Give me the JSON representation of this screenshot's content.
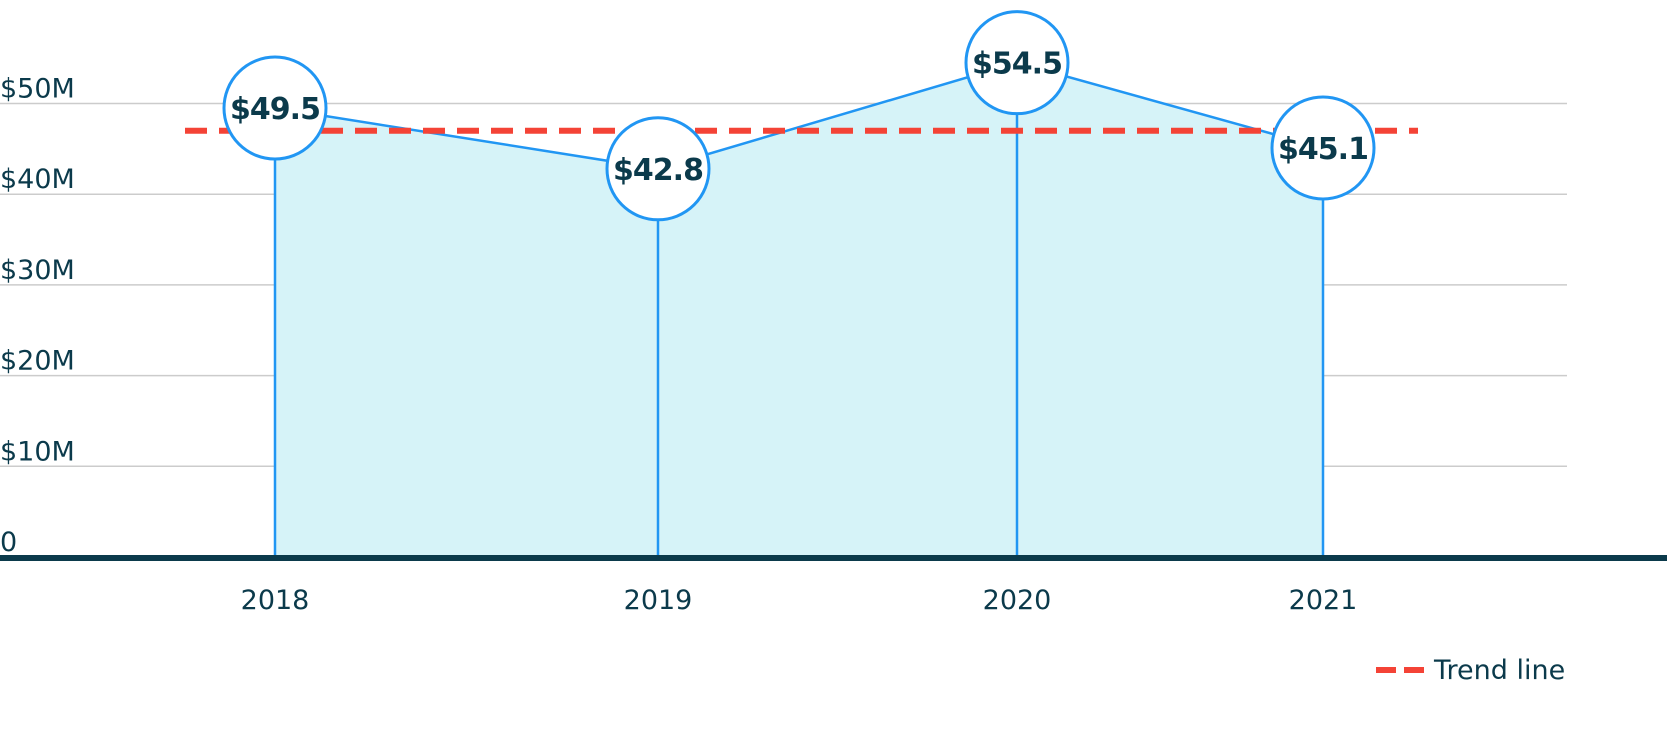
{
  "chart_data": {
    "type": "area",
    "categories": [
      "2018",
      "2019",
      "2020",
      "2021"
    ],
    "values": [
      49.5,
      42.8,
      54.5,
      45.1
    ],
    "data_labels": [
      "$49.5",
      "$42.8",
      "$54.5",
      "$45.1"
    ],
    "trend_value": 47,
    "ylim": [
      0,
      50
    ],
    "y_tick_values": [
      0,
      10,
      20,
      30,
      40,
      50
    ],
    "y_tick_labels": [
      "0",
      "$10M",
      "$20M",
      "$30M",
      "$40M",
      "$50M"
    ],
    "grid": true,
    "legend": {
      "placement": "bottom-right",
      "entries": [
        {
          "name": "Trend line",
          "style": "dashed"
        }
      ]
    },
    "colors": {
      "area_fill": "#d6f3f8",
      "line": "#2196f3",
      "trend": "#f44336",
      "axis": "#0b3a4b",
      "grid": "#cccccc",
      "text": "#0b3a4b",
      "marker_fill": "#ffffff"
    }
  }
}
